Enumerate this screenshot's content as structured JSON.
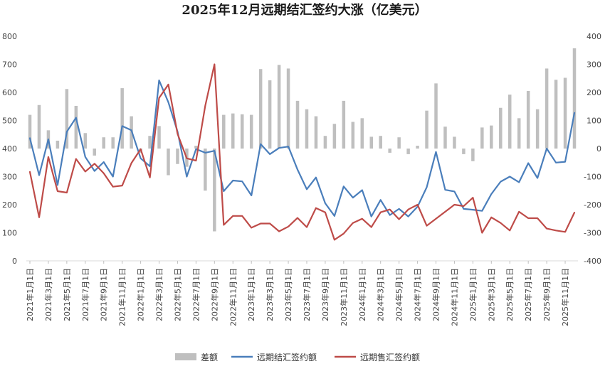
{
  "chart_data": {
    "type": "combo-bar-line",
    "title": "2025年12月远期结汇签约大涨（亿美元）",
    "y_left": {
      "min": 0,
      "max": 800,
      "step": 100,
      "ticks": [
        "0",
        "100",
        "200",
        "300",
        "400",
        "500",
        "600",
        "700",
        "800"
      ]
    },
    "y_right": {
      "min": -400,
      "max": 400,
      "step": 100,
      "ticks": [
        "-400",
        "-300",
        "-200",
        "-100",
        "0",
        "100",
        "200",
        "300",
        "400"
      ]
    },
    "categories": [
      "2021-01",
      "2021-02",
      "2021-03",
      "2021-04",
      "2021-05",
      "2021-06",
      "2021-07",
      "2021-08",
      "2021-09",
      "2021-10",
      "2021-11",
      "2021-12",
      "2022-01",
      "2022-02",
      "2022-03",
      "2022-04",
      "2022-05",
      "2022-06",
      "2022-07",
      "2022-08",
      "2022-09",
      "2022-10",
      "2022-11",
      "2022-12",
      "2023-01",
      "2023-02",
      "2023-03",
      "2023-04",
      "2023-05",
      "2023-06",
      "2023-07",
      "2023-08",
      "2023-09",
      "2023-10",
      "2023-11",
      "2023-12",
      "2024-01",
      "2024-02",
      "2024-03",
      "2024-04",
      "2024-05",
      "2024-06",
      "2024-07",
      "2024-08",
      "2024-09",
      "2024-10",
      "2024-11",
      "2024-12",
      "2025-01",
      "2025-02",
      "2025-03",
      "2025-04",
      "2025-05",
      "2025-06",
      "2025-07",
      "2025-08",
      "2025-09",
      "2025-10",
      "2025-11",
      "2025-12"
    ],
    "x_tick_labels": [
      "2021年1月1日",
      "2021年3月1日",
      "2021年5月1日",
      "2021年7月1日",
      "2021年9月1日",
      "2021年11月1日",
      "2022年1月1日",
      "2022年3月1日",
      "2022年5月1日",
      "2022年7月1日",
      "2022年9月1日",
      "2022年11月1日",
      "2023年1月1日",
      "2023年3月1日",
      "2023年5月1日",
      "2023年7月1日",
      "2023年9月1日",
      "2023年11月1日",
      "2024年1月1日",
      "2024年3月1日",
      "2024年5月1日",
      "2024年7月1日",
      "2024年9月1日",
      "2024年11月1日",
      "2025年1月1日",
      "2025年3月1日",
      "2025年5月1日",
      "2025年7月1日",
      "2025年9月1日",
      "2025年11月1日"
    ],
    "series": [
      {
        "name": "差额",
        "type": "bar",
        "axis": "right",
        "color": "#bfbfbf",
        "values": [
          120,
          155,
          65,
          28,
          212,
          152,
          55,
          -25,
          40,
          40,
          215,
          115,
          -15,
          45,
          80,
          -95,
          -55,
          -65,
          10,
          -150,
          -295,
          120,
          125,
          122,
          120,
          283,
          243,
          298,
          285,
          170,
          140,
          115,
          45,
          88,
          170,
          95,
          108,
          42,
          45,
          -15,
          40,
          -20,
          10,
          135,
          232,
          78,
          42,
          -20,
          -45,
          75,
          82,
          145,
          192,
          108,
          205,
          140,
          285,
          245,
          252,
          357
        ]
      },
      {
        "name": "远期结汇签约额",
        "type": "line",
        "axis": "left",
        "color": "#4a7ebb",
        "values": [
          437,
          305,
          433,
          270,
          460,
          510,
          370,
          320,
          352,
          300,
          480,
          465,
          365,
          337,
          643,
          565,
          460,
          300,
          398,
          385,
          392,
          248,
          286,
          283,
          233,
          416,
          380,
          402,
          407,
          325,
          255,
          297,
          205,
          160,
          265,
          225,
          252,
          158,
          217,
          163,
          185,
          158,
          193,
          262,
          388,
          253,
          247,
          185,
          182,
          178,
          238,
          282,
          300,
          280,
          348,
          295,
          400,
          350,
          353,
          527
        ]
      },
      {
        "name": "远期售汇签约额",
        "type": "line",
        "axis": "left",
        "color": "#be4b48",
        "values": [
          317,
          155,
          370,
          248,
          243,
          363,
          318,
          346,
          312,
          264,
          268,
          348,
          398,
          297,
          580,
          628,
          452,
          365,
          357,
          553,
          700,
          128,
          160,
          160,
          118,
          133,
          133,
          105,
          122,
          153,
          120,
          188,
          173,
          75,
          97,
          135,
          150,
          120,
          173,
          183,
          148,
          183,
          200,
          125,
          150,
          175,
          200,
          195,
          225,
          100,
          155,
          135,
          108,
          175,
          152,
          152,
          115,
          108,
          103,
          172
        ]
      }
    ],
    "legend": [
      "差额",
      "远期结汇签约额",
      "远期售汇签约额"
    ],
    "legend_position": "bottom"
  }
}
